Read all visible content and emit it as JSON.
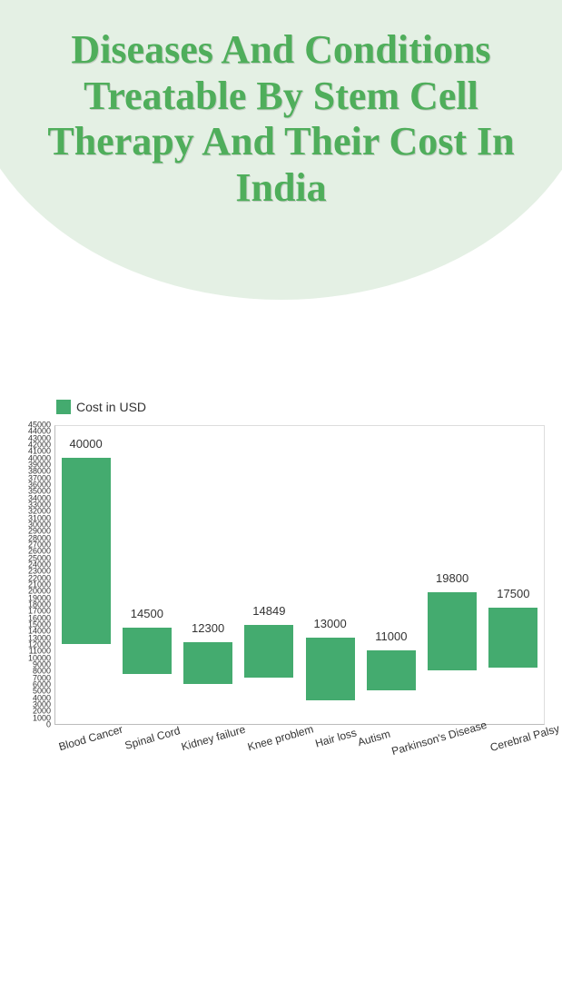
{
  "title": "Diseases And Conditions Treatable By Stem Cell Therapy And Their Cost In India",
  "legend_label": "Cost in USD",
  "chart": {
    "type": "bar",
    "background_color": "#ffffff",
    "bar_color": "#44ab6f",
    "title_color": "#4fae5b",
    "header_bg_color": "#e4f0e4",
    "axis_color": "#bbbbbb",
    "text_color": "#333333",
    "ylim": [
      0,
      45000
    ],
    "ytick_step": 1000,
    "bar_width": 0.8,
    "label_fontsize": 12,
    "value_fontsize": 13,
    "title_fontsize": 44,
    "items": [
      {
        "label": "Blood Cancer",
        "value": 40000,
        "low": 12000,
        "high": 40000
      },
      {
        "label": "Spinal Cord",
        "value": 14500,
        "low": 7500,
        "high": 14500
      },
      {
        "label": "Kidney failure",
        "value": 12300,
        "low": 6000,
        "high": 12300
      },
      {
        "label": "Knee problem",
        "value": 14849,
        "low": 7000,
        "high": 14849
      },
      {
        "label": "Hair loss",
        "value": 13000,
        "low": 3500,
        "high": 13000
      },
      {
        "label": "Autism",
        "value": 11000,
        "low": 5000,
        "high": 11000
      },
      {
        "label": "Parkinson's Disease",
        "value": 19800,
        "low": 8000,
        "high": 19800
      },
      {
        "label": "Cerebral Palsy",
        "value": 17500,
        "low": 8500,
        "high": 17500
      }
    ]
  }
}
